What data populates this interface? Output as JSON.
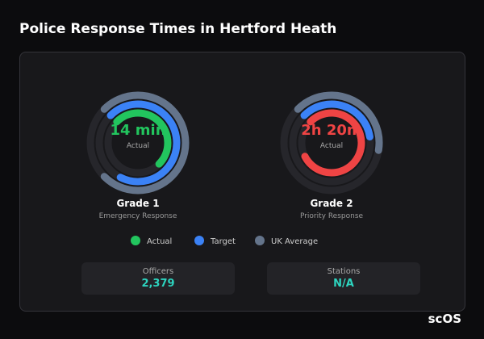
{
  "header": {
    "title": "Police Response Times in Hertford Heath"
  },
  "gauges": [
    {
      "value": "14 min",
      "caption": "Actual",
      "title": "Grade 1",
      "subtitle": "Emergency Response",
      "actual_color": "#22c55e",
      "rings": [
        0.5,
        0.7,
        0.75
      ]
    },
    {
      "value": "2h 20m",
      "caption": "Actual",
      "title": "Grade 2",
      "subtitle": "Priority Response",
      "actual_color": "#ef4444",
      "rings": [
        0.8,
        0.35,
        0.4
      ]
    }
  ],
  "legend": [
    {
      "name": "Actual",
      "color": "#22c55e"
    },
    {
      "name": "Target",
      "color": "#3b82f6"
    },
    {
      "name": "UK Average",
      "color": "#64748b"
    }
  ],
  "stats": [
    {
      "label": "Officers",
      "value": "2,379"
    },
    {
      "label": "Stations",
      "value": "N/A"
    }
  ],
  "brand": "scOS"
}
